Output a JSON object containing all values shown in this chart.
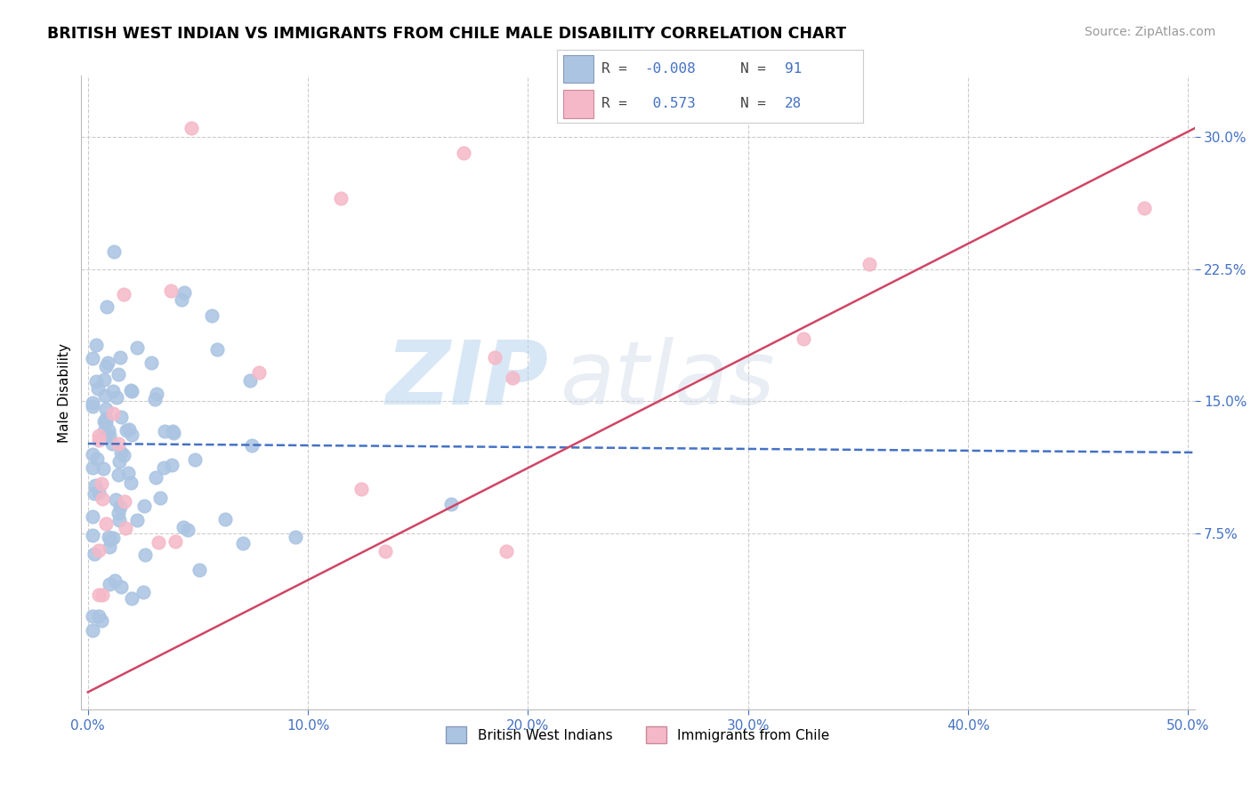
{
  "title": "BRITISH WEST INDIAN VS IMMIGRANTS FROM CHILE MALE DISABILITY CORRELATION CHART",
  "source": "Source: ZipAtlas.com",
  "ylabel": "Male Disability",
  "xlim": [
    -0.003,
    0.503
  ],
  "ylim": [
    -0.025,
    0.335
  ],
  "xticks": [
    0.0,
    0.1,
    0.2,
    0.3,
    0.4,
    0.5
  ],
  "yticks": [
    0.075,
    0.15,
    0.225,
    0.3
  ],
  "xtick_labels": [
    "0.0%",
    "10.0%",
    "20.0%",
    "30.0%",
    "40.0%",
    "50.0%"
  ],
  "ytick_labels": [
    "7.5%",
    "15.0%",
    "22.5%",
    "30.0%"
  ],
  "blue_R": -0.008,
  "blue_N": 91,
  "pink_R": 0.573,
  "pink_N": 28,
  "blue_color": "#aac4e2",
  "pink_color": "#f5b8c8",
  "blue_line_color": "#4472c4",
  "pink_line_color": "#d04565",
  "legend_blue_label": "British West Indians",
  "legend_pink_label": "Immigrants from Chile",
  "watermark_text": "ZIP",
  "watermark_text2": "atlas",
  "tick_color": "#4472c4",
  "grid_color": "#cccccc",
  "title_fontsize": 12.5,
  "source_fontsize": 10,
  "blue_trend_y_at_0": 0.126,
  "blue_trend_y_at_50": 0.121,
  "pink_trend_y_at_0": -0.015,
  "pink_trend_y_at_50": 0.305
}
